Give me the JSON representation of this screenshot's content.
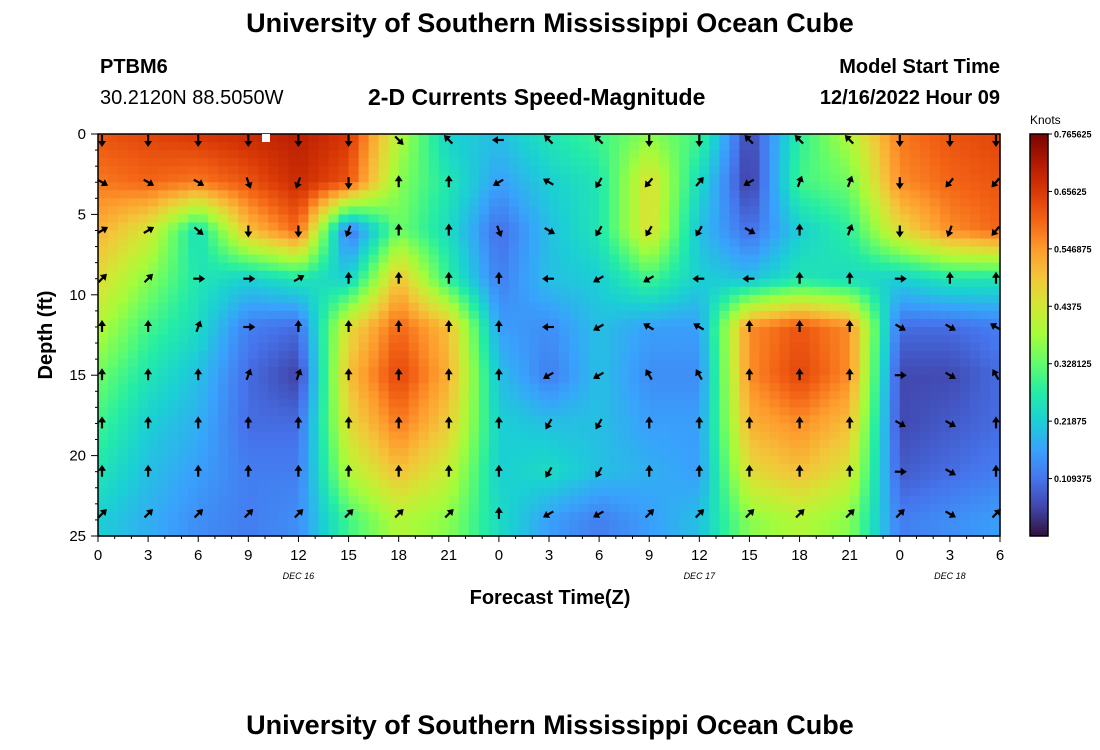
{
  "header": {
    "title": "University of Southern Mississippi Ocean Cube",
    "station_id": "PTBM6",
    "station_coords": "30.2120N  88.5050W",
    "model_start_label": "Model Start Time",
    "model_start_value": "12/16/2022 Hour 09",
    "chart_title": "2-D Currents Speed-Magnitude"
  },
  "footer": {
    "title": "University of Southern Mississippi Ocean Cube"
  },
  "colors": {
    "arrow": "#000000",
    "marker": "#ffffff",
    "scale": [
      "#30123b",
      "#4145ab",
      "#4675ed",
      "#39a2fc",
      "#1bcfd4",
      "#24eca6",
      "#61fc6c",
      "#a4fc3b",
      "#d1e834",
      "#f3c63a",
      "#fe9b2d",
      "#f36315",
      "#d93806",
      "#b11901",
      "#7a0402"
    ]
  },
  "chart_data": {
    "type": "heatmap",
    "title": "2-D Currents Speed-Magnitude",
    "xlabel": "Forecast Time(Z)",
    "ylabel": "Depth (ft)",
    "x_tick_labels": [
      "0",
      "3",
      "6",
      "9",
      "12",
      "15",
      "18",
      "21",
      "0",
      "3",
      "6",
      "9",
      "12",
      "15",
      "18",
      "21",
      "0",
      "3",
      "6"
    ],
    "x_hours": [
      0,
      3,
      6,
      9,
      12,
      15,
      18,
      21,
      24,
      27,
      30,
      33,
      36,
      39,
      42,
      45,
      48,
      51,
      54
    ],
    "date_labels": [
      {
        "text": "DEC 16",
        "hour": 12
      },
      {
        "text": "DEC 17",
        "hour": 36
      },
      {
        "text": "DEC 18",
        "hour": 51
      }
    ],
    "y_ticks": [
      0,
      5,
      10,
      15,
      20,
      25
    ],
    "ylim": [
      0,
      25
    ],
    "xlim": [
      0,
      54
    ],
    "colorbar": {
      "units": "Knots",
      "range": [
        0,
        0.765625
      ],
      "tick_labels": [
        "0.765625",
        "0.65625",
        "0.546875",
        "0.4375",
        "0.328125",
        "0.21875",
        "0.109375"
      ],
      "tick_values": [
        0.765625,
        0.65625,
        0.546875,
        0.4375,
        0.328125,
        0.21875,
        0.109375
      ]
    },
    "grid_hours": [
      0,
      3,
      6,
      9,
      12,
      15,
      18,
      21,
      24,
      27,
      30,
      33,
      36,
      39,
      42,
      45,
      48,
      51,
      54
    ],
    "grid_depths": [
      0,
      3,
      6,
      9,
      12,
      15,
      18,
      21,
      24
    ],
    "speed_knots": [
      [
        0.62,
        0.64,
        0.66,
        0.68,
        0.7,
        0.66,
        0.4,
        0.22,
        0.2,
        0.26,
        0.3,
        0.36,
        0.3,
        0.05,
        0.28,
        0.4,
        0.58,
        0.62,
        0.64
      ],
      [
        0.58,
        0.6,
        0.58,
        0.62,
        0.68,
        0.62,
        0.36,
        0.26,
        0.16,
        0.22,
        0.26,
        0.46,
        0.24,
        0.04,
        0.3,
        0.34,
        0.56,
        0.6,
        0.62
      ],
      [
        0.52,
        0.44,
        0.24,
        0.5,
        0.6,
        0.1,
        0.34,
        0.24,
        0.1,
        0.2,
        0.26,
        0.46,
        0.2,
        0.1,
        0.22,
        0.28,
        0.46,
        0.56,
        0.6
      ],
      [
        0.46,
        0.36,
        0.26,
        0.22,
        0.26,
        0.22,
        0.5,
        0.28,
        0.12,
        0.2,
        0.22,
        0.3,
        0.22,
        0.2,
        0.26,
        0.24,
        0.22,
        0.26,
        0.26
      ],
      [
        0.4,
        0.3,
        0.24,
        0.12,
        0.1,
        0.46,
        0.6,
        0.5,
        0.16,
        0.14,
        0.2,
        0.16,
        0.16,
        0.56,
        0.62,
        0.56,
        0.1,
        0.1,
        0.12
      ],
      [
        0.34,
        0.26,
        0.2,
        0.1,
        0.05,
        0.5,
        0.64,
        0.52,
        0.2,
        0.12,
        0.2,
        0.14,
        0.14,
        0.56,
        0.64,
        0.56,
        0.06,
        0.06,
        0.1
      ],
      [
        0.3,
        0.22,
        0.18,
        0.1,
        0.1,
        0.46,
        0.58,
        0.48,
        0.22,
        0.2,
        0.2,
        0.16,
        0.16,
        0.52,
        0.56,
        0.5,
        0.06,
        0.08,
        0.1
      ],
      [
        0.26,
        0.2,
        0.16,
        0.12,
        0.12,
        0.4,
        0.5,
        0.42,
        0.22,
        0.24,
        0.2,
        0.18,
        0.16,
        0.46,
        0.5,
        0.44,
        0.08,
        0.1,
        0.12
      ],
      [
        0.22,
        0.18,
        0.14,
        0.12,
        0.14,
        0.3,
        0.4,
        0.36,
        0.24,
        0.16,
        0.12,
        0.16,
        0.2,
        0.36,
        0.4,
        0.36,
        0.12,
        0.14,
        0.16
      ]
    ],
    "direction_deg": [
      [
        180,
        180,
        180,
        180,
        180,
        180,
        135,
        315,
        270,
        315,
        315,
        180,
        180,
        315,
        315,
        315,
        180,
        180,
        180
      ],
      [
        120,
        120,
        120,
        160,
        200,
        180,
        0,
        0,
        240,
        300,
        210,
        220,
        40,
        240,
        20,
        20,
        180,
        220,
        220
      ],
      [
        60,
        60,
        130,
        180,
        180,
        200,
        0,
        0,
        160,
        120,
        210,
        210,
        210,
        120,
        0,
        20,
        180,
        200,
        220
      ],
      [
        45,
        45,
        90,
        90,
        60,
        0,
        0,
        0,
        0,
        270,
        240,
        240,
        270,
        270,
        0,
        0,
        90,
        0,
        0
      ],
      [
        0,
        0,
        20,
        90,
        0,
        0,
        0,
        0,
        0,
        270,
        240,
        300,
        300,
        0,
        0,
        0,
        120,
        120,
        300
      ],
      [
        0,
        0,
        0,
        20,
        20,
        0,
        0,
        0,
        0,
        240,
        240,
        330,
        330,
        0,
        0,
        0,
        90,
        120,
        330
      ],
      [
        0,
        0,
        0,
        0,
        0,
        0,
        0,
        0,
        0,
        210,
        210,
        0,
        0,
        0,
        0,
        0,
        120,
        120,
        0
      ],
      [
        0,
        0,
        0,
        0,
        0,
        0,
        0,
        0,
        0,
        210,
        210,
        0,
        0,
        0,
        0,
        0,
        90,
        120,
        0
      ],
      [
        45,
        45,
        45,
        45,
        45,
        45,
        45,
        45,
        0,
        240,
        240,
        45,
        45,
        45,
        45,
        45,
        45,
        120,
        45
      ]
    ]
  }
}
